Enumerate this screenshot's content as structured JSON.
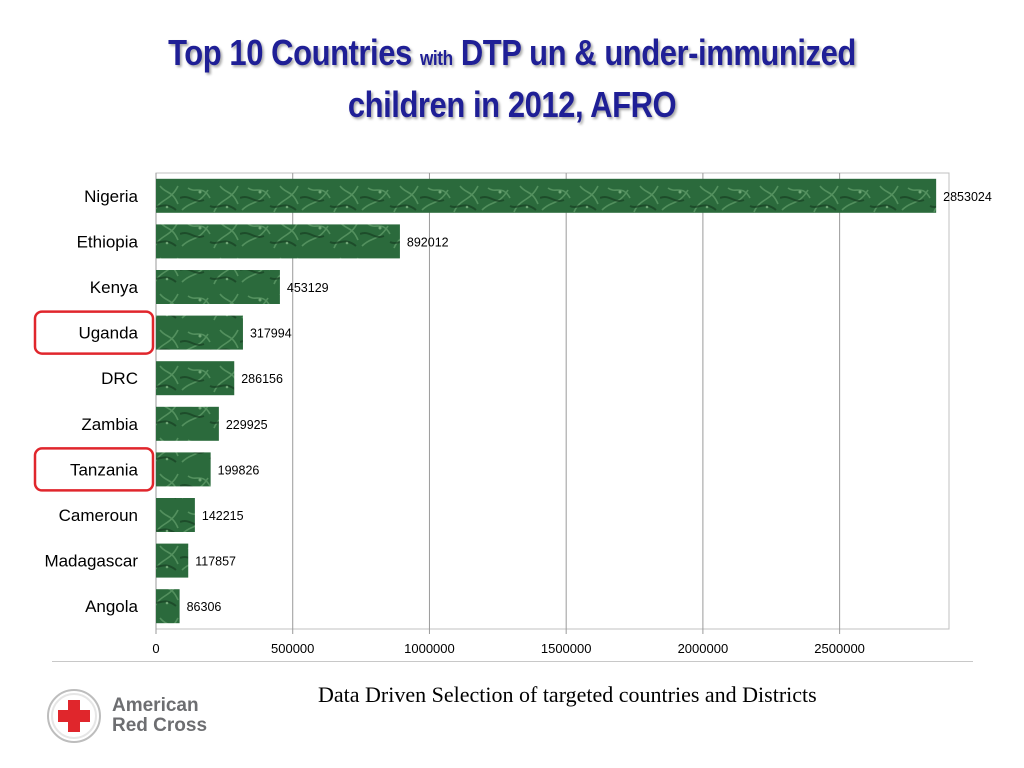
{
  "title": {
    "part1": "Top 10 Countries",
    "small": "with",
    "part2": "DTP un & under-immunized",
    "line2": "children in 2012, AFRO"
  },
  "chart_data": {
    "type": "bar",
    "orientation": "horizontal",
    "categories": [
      "Nigeria",
      "Ethiopia",
      "Kenya",
      "Uganda",
      "DRC",
      "Zambia",
      "Tanzania",
      "Cameroun",
      "Madagascar",
      "Angola"
    ],
    "values": [
      2853024,
      892012,
      453129,
      317994,
      286156,
      229925,
      199826,
      142215,
      117857,
      86306
    ],
    "value_labels": [
      "2853024",
      "892012",
      "453129",
      "317994",
      "286156",
      "229925",
      "199826",
      "142215",
      "117857",
      "86306"
    ],
    "xlim": [
      0,
      2900000
    ],
    "xticks": [
      0,
      500000,
      1000000,
      1500000,
      2000000,
      2500000
    ],
    "xtick_labels": [
      "0",
      "500000",
      "1000000",
      "1500000",
      "2000000",
      "2500000"
    ],
    "grid": true,
    "highlighted": [
      "Uganda",
      "Tanzania"
    ],
    "bar_color": "#2e6b3e",
    "highlight_color": "#e0262c"
  },
  "caption": "Data Driven Selection of targeted countries and Districts",
  "logo": {
    "line1": "American",
    "line2": "Red Cross",
    "cross_color": "#e0262c"
  }
}
